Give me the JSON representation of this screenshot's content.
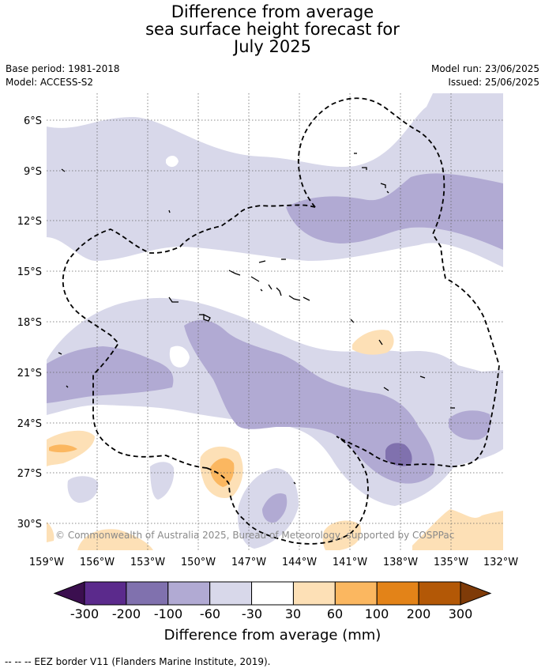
{
  "title": {
    "line1": "Difference from average",
    "line2": "sea surface height forecast for",
    "line3": "July 2025"
  },
  "meta": {
    "base_period": "Base period: 1981-2018",
    "model": "Model: ACCESS-S2",
    "model_run": "Model run: 23/06/2025",
    "issued": "Issued: 25/06/2025"
  },
  "map": {
    "lat_labels": [
      "6°S",
      "9°S",
      "12°S",
      "15°S",
      "18°S",
      "21°S",
      "24°S",
      "27°S",
      "30°S"
    ],
    "lon_labels": [
      "159°W",
      "156°W",
      "153°W",
      "150°W",
      "147°W",
      "144°W",
      "141°W",
      "138°W",
      "135°W",
      "132°W"
    ],
    "copyright": "© Commonwealth of Australia 2025, Bureau of Meteorology, supported by COSPPac",
    "gridlines": true
  },
  "legend": {
    "tick_labels": [
      "-300",
      "-200",
      "-100",
      "-60",
      "-30",
      "30",
      "60",
      "100",
      "200",
      "300"
    ],
    "colors": [
      "#3b0f4f",
      "#5b2a8c",
      "#8071ae",
      "#b1aad3",
      "#d8d8ea",
      "#ffffff",
      "#fde0b6",
      "#fbb760",
      "#e38318",
      "#b35806",
      "#7f3b08"
    ],
    "label": "Difference from average (mm)"
  },
  "footer": "--  --  -- EEZ border V11 (Flanders Marine Institute, 2019)."
}
